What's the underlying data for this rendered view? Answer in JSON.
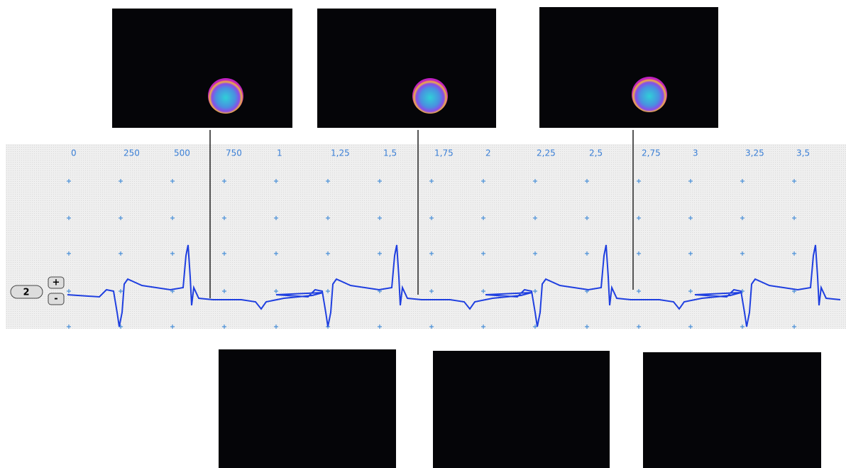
{
  "ruler": {
    "labels": [
      "0",
      "250",
      "500",
      "750",
      "1",
      "1,25",
      "1,5",
      "1,75",
      "2",
      "2,25",
      "2,5",
      "2,75",
      "3",
      "3,25",
      "3,5"
    ]
  },
  "zoom": {
    "value": "2",
    "increase": "+",
    "decrease": "-"
  }
}
